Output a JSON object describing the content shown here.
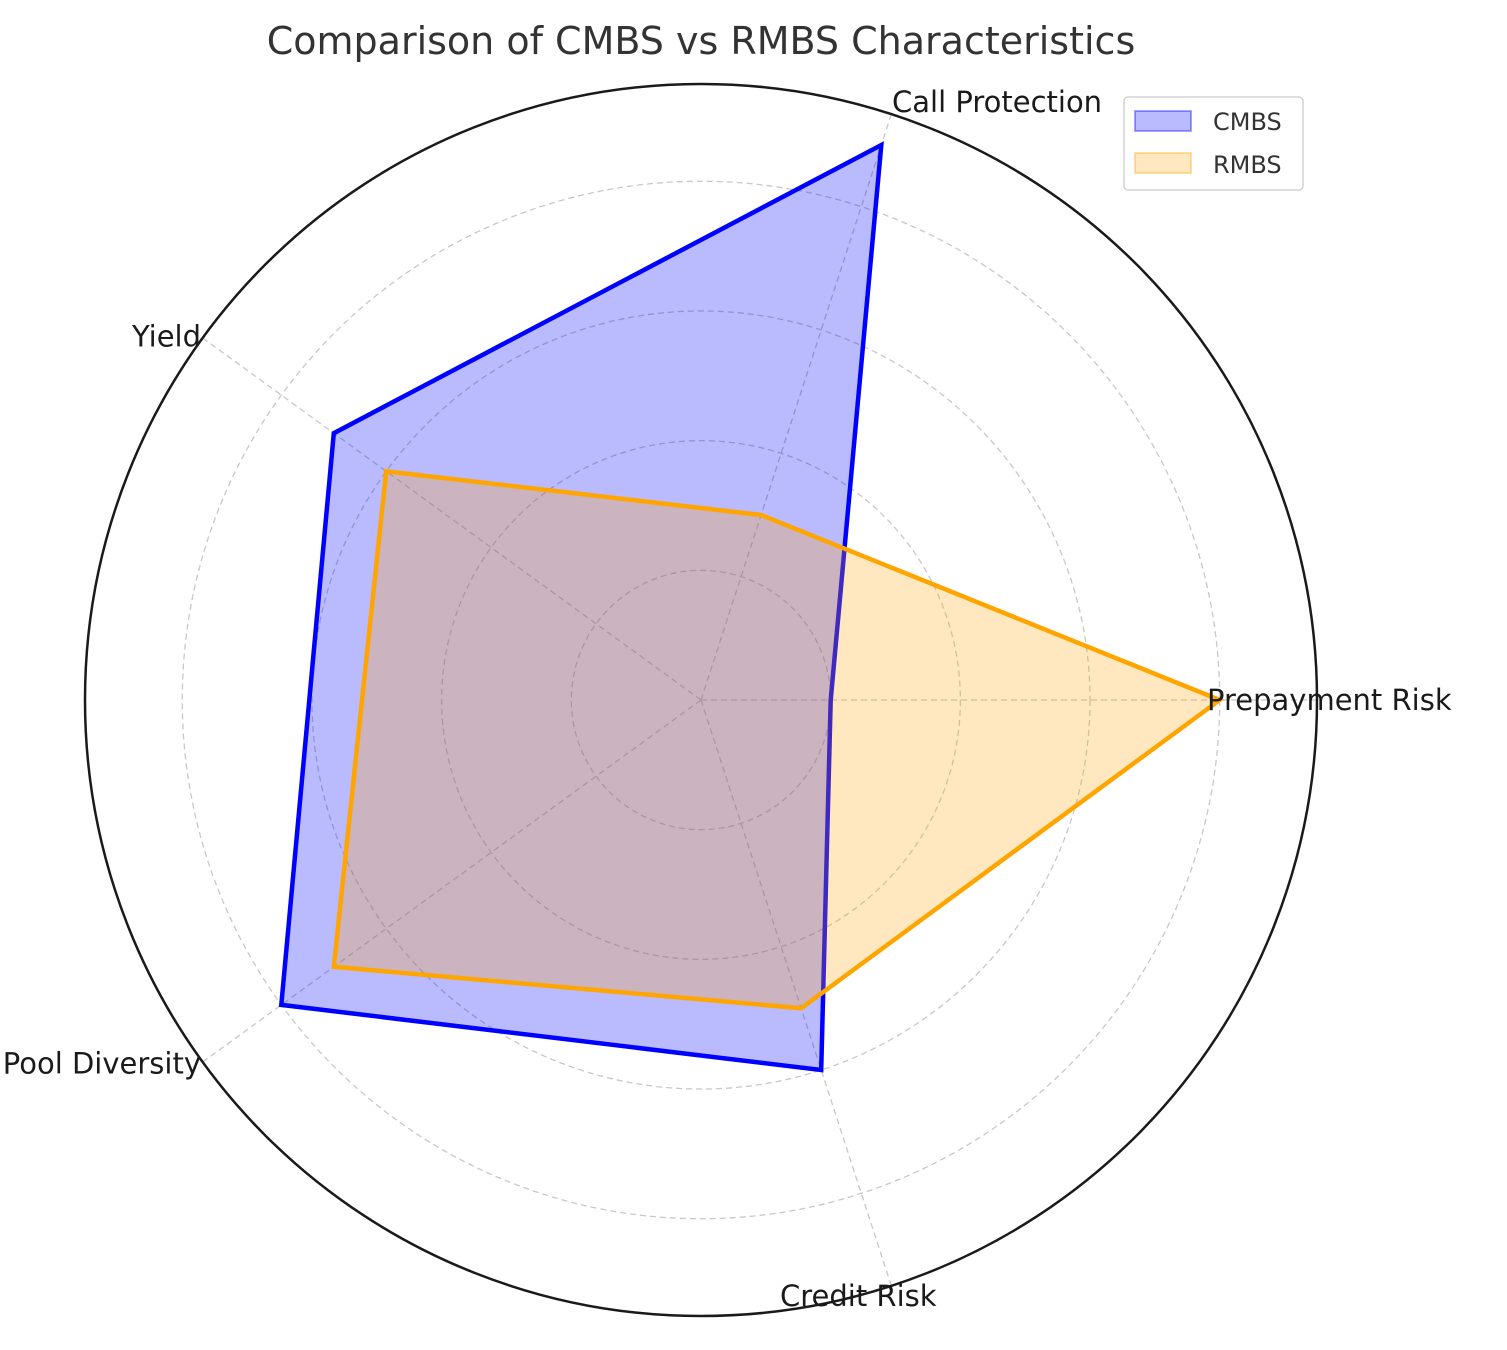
{
  "chart_data": {
    "type": "radar",
    "title": "Comparison of CMBS vs RMBS Characteristics",
    "categories": [
      "Prepayment Risk",
      "Call Protection",
      "Yield",
      "Loan Pool Diversity",
      "Credit Risk"
    ],
    "series": [
      {
        "name": "CMBS",
        "values": [
          2,
          9,
          7,
          8,
          6
        ],
        "color": "#0000ff"
      },
      {
        "name": "RMBS",
        "values": [
          8,
          3,
          6,
          7,
          5
        ],
        "color": "#ffa500"
      }
    ],
    "rlim": [
      0,
      9.5
    ],
    "grid": true,
    "legend_position": "top-right"
  }
}
